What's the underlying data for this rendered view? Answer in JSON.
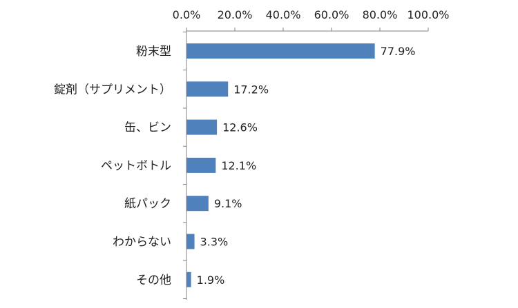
{
  "chart_data": {
    "type": "bar",
    "orientation": "horizontal",
    "categories": [
      "粉末型",
      "錠剤（サプリメント）",
      "缶、ビン",
      "ペットボトル",
      "紙パック",
      "わからない",
      "その他"
    ],
    "values": [
      77.9,
      17.2,
      12.6,
      12.1,
      9.1,
      3.3,
      1.9
    ],
    "value_labels": [
      "77.9%",
      "17.2%",
      "12.6%",
      "12.1%",
      "9.1%",
      "3.3%",
      "1.9%"
    ],
    "xlim": [
      0,
      100
    ],
    "x_ticks": [
      "0.0%",
      "20.0%",
      "40.0%",
      "60.0%",
      "80.0%",
      "100.0%"
    ],
    "x_axis_position": "top",
    "grid": false,
    "legend": "none",
    "bar_color": "#4F81BD",
    "axis_color": "#808080"
  }
}
